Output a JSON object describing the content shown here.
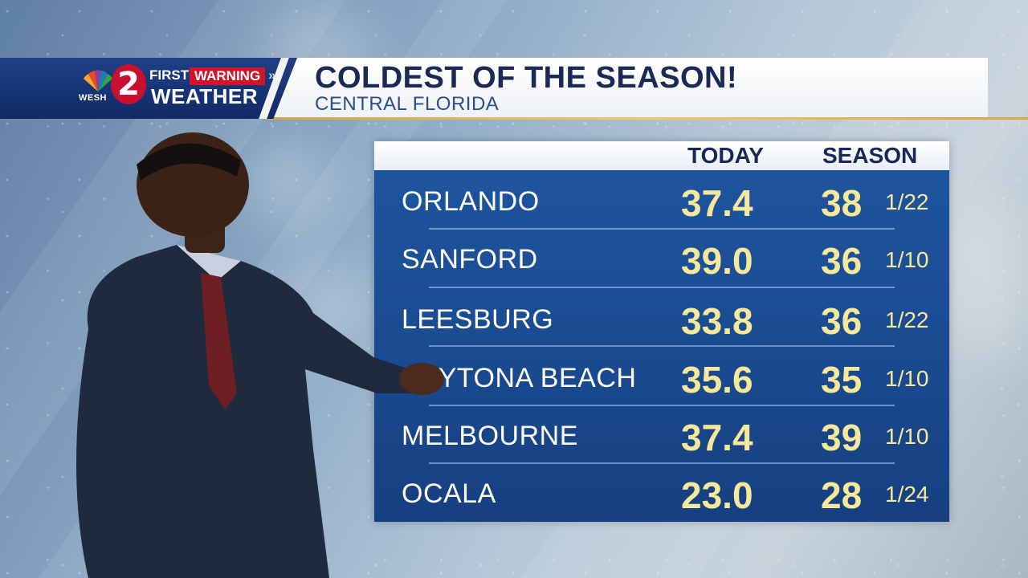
{
  "branding": {
    "station_number": "2",
    "station_call": "WESH",
    "first_label": "FIRST",
    "warning_label": "WARNING",
    "chevron": "»",
    "weather_label": "WEATHER"
  },
  "header": {
    "title": "COLDEST OF THE SEASON!",
    "subtitle": "CENTRAL FLORIDA"
  },
  "table": {
    "col_today": "TODAY",
    "col_season": "SEASON",
    "rows": [
      {
        "city": "ORLANDO",
        "today": "37.4",
        "season": "38",
        "date": "1/22"
      },
      {
        "city": "SANFORD",
        "today": "39.0",
        "season": "36",
        "date": "1/10"
      },
      {
        "city": "LEESBURG",
        "today": "33.8",
        "season": "36",
        "date": "1/22"
      },
      {
        "city": "DAYTONA BEACH",
        "today": "35.6",
        "season": "35",
        "date": "1/10"
      },
      {
        "city": "MELBOURNE",
        "today": "37.4",
        "season": "39",
        "date": "1/10"
      },
      {
        "city": "OCALA",
        "today": "23.0",
        "season": "28",
        "date": "1/24"
      }
    ]
  },
  "colors": {
    "table_blue": "#1e56a0",
    "value_yellow": "#f6e89a",
    "brand_red": "#c8102e",
    "brand_navy": "#102a66",
    "accent_gold": "#d9a640"
  }
}
